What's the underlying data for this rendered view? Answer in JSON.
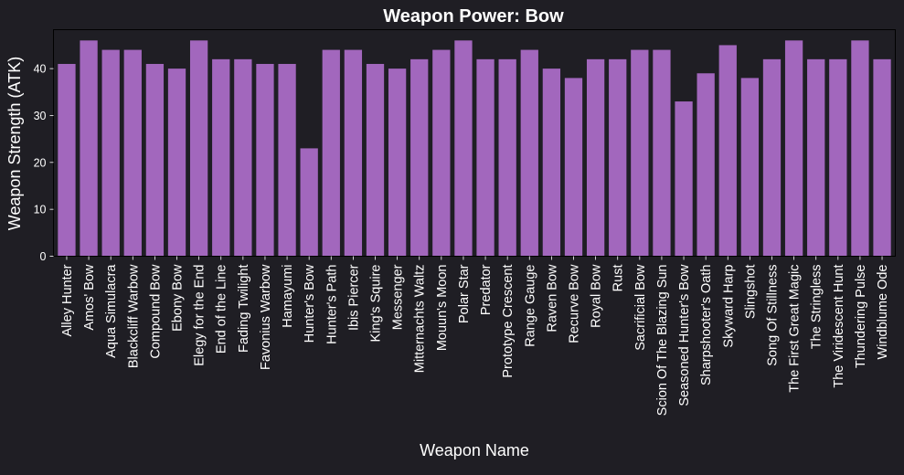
{
  "chart_data": {
    "type": "bar",
    "title": "Weapon Power: Bow",
    "xlabel": "Weapon Name",
    "ylabel": "Weapon Strength (ATK)",
    "ylim": [
      0,
      48.3
    ],
    "yticks": [
      0,
      10,
      20,
      30,
      40
    ],
    "grid": false,
    "bar_color": "#a267bd",
    "background": "#1f1e24",
    "categories": [
      "Alley Hunter",
      "Amos' Bow",
      "Aqua Simulacra",
      "Blackcliff Warbow",
      "Compound Bow",
      "Ebony Bow",
      "Elegy for the End",
      "End of the Line",
      "Fading Twilight",
      "Favonius Warbow",
      "Hamayumi",
      "Hunter's Bow",
      "Hunter's Path",
      "Ibis Piercer",
      "King's Squire",
      "Messenger",
      "Mitternachts Waltz",
      "Mouun's Moon",
      "Polar Star",
      "Predator",
      "Prototype Crescent",
      "Range Gauge",
      "Raven Bow",
      "Recurve Bow",
      "Royal Bow",
      "Rust",
      "Sacrificial Bow",
      "Scion Of The Blazing Sun",
      "Seasoned Hunter's Bow",
      "Sharpshooter's Oath",
      "Skyward Harp",
      "Slingshot",
      "Song Of Stillness",
      "The First Great Magic",
      "The Stringless",
      "The Viridescent Hunt",
      "Thundering Pulse",
      "Windblume Ode"
    ],
    "values": [
      41,
      46,
      44,
      44,
      41,
      40,
      46,
      42,
      42,
      41,
      41,
      23,
      44,
      44,
      41,
      40,
      42,
      44,
      46,
      42,
      42,
      44,
      40,
      38,
      42,
      42,
      44,
      44,
      33,
      39,
      45,
      38,
      42,
      46,
      42,
      42,
      46,
      42
    ]
  }
}
